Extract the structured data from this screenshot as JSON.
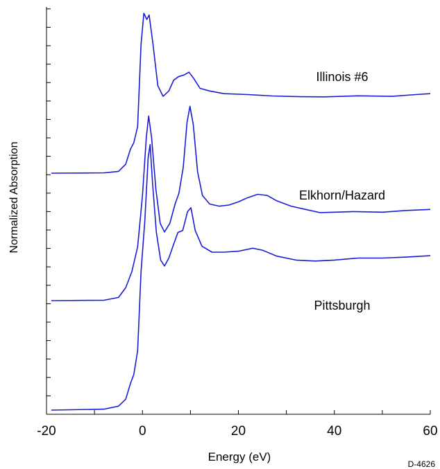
{
  "chart_data": {
    "type": "line",
    "title": "",
    "xlabel": "Energy (eV)",
    "ylabel": "Normalized Absorption",
    "xlim": [
      -20,
      60
    ],
    "xticks": [
      -20,
      0,
      20,
      40,
      60
    ],
    "x_tick_labels": [
      "-20",
      "0",
      "20",
      "40",
      "60"
    ],
    "y_ticks_labeled": false,
    "grid": false,
    "line_color": "#1a1ad6",
    "figure_id": "D-4626",
    "series": [
      {
        "name": "Illinois #6",
        "points": [
          [
            -19,
            0
          ],
          [
            -8,
            0.02
          ],
          [
            -5,
            0.1
          ],
          [
            -3.5,
            0.5
          ],
          [
            -2.5,
            1.35
          ],
          [
            -1.8,
            1.7
          ],
          [
            -1,
            2.6
          ],
          [
            -0.3,
            7.2
          ],
          [
            0.3,
            8.95
          ],
          [
            0.9,
            8.6
          ],
          [
            1.4,
            8.85
          ],
          [
            2.2,
            7.2
          ],
          [
            3.2,
            4.9
          ],
          [
            4.3,
            4.3
          ],
          [
            5.5,
            4.6
          ],
          [
            6.5,
            5.2
          ],
          [
            7.5,
            5.4
          ],
          [
            8.7,
            5.5
          ],
          [
            9.7,
            5.65
          ],
          [
            10.7,
            5.3
          ],
          [
            12,
            4.75
          ],
          [
            14,
            4.6
          ],
          [
            17,
            4.45
          ],
          [
            22,
            4.4
          ],
          [
            27,
            4.32
          ],
          [
            30,
            4.3
          ],
          [
            33,
            4.28
          ],
          [
            38,
            4.27
          ],
          [
            45,
            4.33
          ],
          [
            52,
            4.3
          ],
          [
            57,
            4.4
          ],
          [
            60,
            4.45
          ]
        ]
      },
      {
        "name": "Elkhorn/Hazard",
        "points": [
          [
            -19,
            0
          ],
          [
            -8,
            0.02
          ],
          [
            -5,
            0.15
          ],
          [
            -3.5,
            0.6
          ],
          [
            -2.2,
            1.35
          ],
          [
            -1,
            2.5
          ],
          [
            0,
            4.9
          ],
          [
            0.8,
            7.6
          ],
          [
            1.3,
            8.6
          ],
          [
            1.9,
            7.6
          ],
          [
            2.8,
            5.2
          ],
          [
            3.7,
            3.6
          ],
          [
            4.6,
            3.2
          ],
          [
            5.7,
            3.6
          ],
          [
            6.8,
            4.5
          ],
          [
            7.6,
            5.0
          ],
          [
            8.5,
            6.2
          ],
          [
            9.3,
            8.3
          ],
          [
            9.9,
            9.05
          ],
          [
            10.6,
            8.2
          ],
          [
            11.5,
            6.0
          ],
          [
            12.5,
            4.9
          ],
          [
            14,
            4.5
          ],
          [
            16,
            4.4
          ],
          [
            18,
            4.45
          ],
          [
            20,
            4.6
          ],
          [
            22,
            4.8
          ],
          [
            24,
            4.95
          ],
          [
            26,
            4.9
          ],
          [
            28,
            4.65
          ],
          [
            31,
            4.4
          ],
          [
            34,
            4.25
          ],
          [
            37,
            4.1
          ],
          [
            40,
            4.12
          ],
          [
            44,
            4.15
          ],
          [
            50,
            4.12
          ],
          [
            55,
            4.2
          ],
          [
            60,
            4.25
          ]
        ]
      },
      {
        "name": "Pittsburgh",
        "points": [
          [
            -19,
            0
          ],
          [
            -8,
            0.05
          ],
          [
            -5,
            0.2
          ],
          [
            -3.5,
            0.55
          ],
          [
            -2.5,
            1.35
          ],
          [
            -1.8,
            1.8
          ],
          [
            -1,
            3.0
          ],
          [
            -0.3,
            7.0
          ],
          [
            0.5,
            9.6
          ],
          [
            1.2,
            12.8
          ],
          [
            1.6,
            13.45
          ],
          [
            2.1,
            11.5
          ],
          [
            2.9,
            9.0
          ],
          [
            3.8,
            7.6
          ],
          [
            4.6,
            7.3
          ],
          [
            5.5,
            7.7
          ],
          [
            6.5,
            8.4
          ],
          [
            7.4,
            9.0
          ],
          [
            8.4,
            9.1
          ],
          [
            9.4,
            10.05
          ],
          [
            10.1,
            10.25
          ],
          [
            11,
            9.1
          ],
          [
            12.4,
            8.3
          ],
          [
            14.5,
            8.0
          ],
          [
            17,
            8.0
          ],
          [
            20,
            8.05
          ],
          [
            23,
            8.2
          ],
          [
            25,
            8.1
          ],
          [
            28,
            7.8
          ],
          [
            32,
            7.6
          ],
          [
            36,
            7.55
          ],
          [
            40,
            7.6
          ],
          [
            45,
            7.7
          ],
          [
            50,
            7.7
          ],
          [
            55,
            7.75
          ],
          [
            60,
            7.82
          ]
        ]
      }
    ]
  }
}
